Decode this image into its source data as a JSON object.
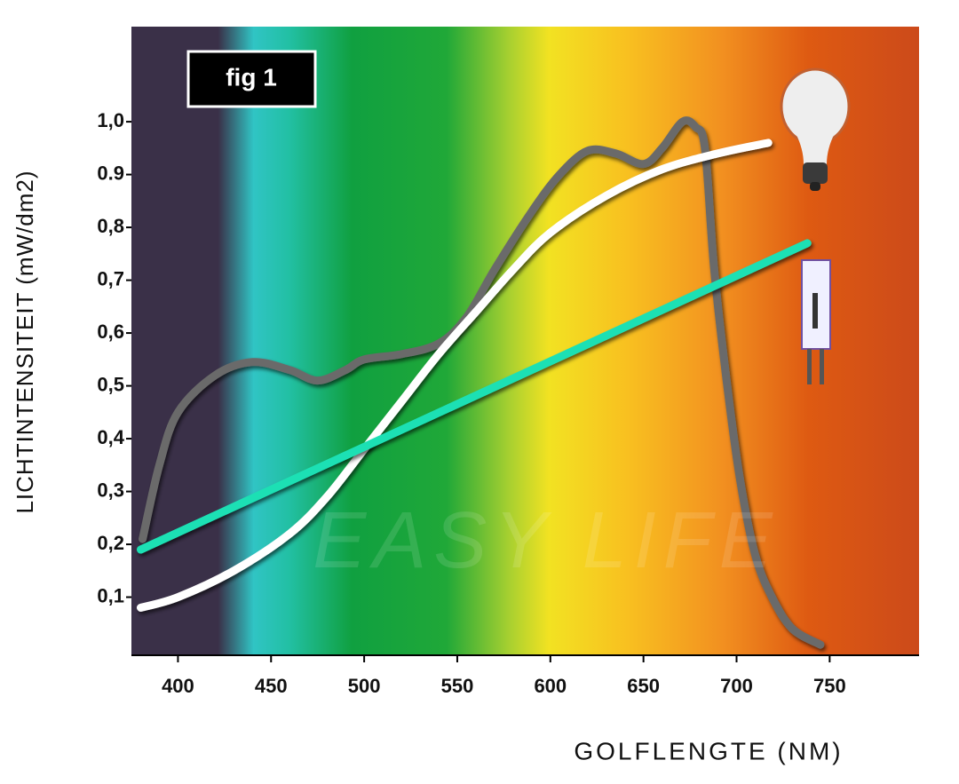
{
  "chart_data": {
    "type": "line",
    "badge": "fig 1",
    "x_label": "GOLFLENGTE (NM)",
    "y_label": "LICHTINTENSITEIT (mW/dm2)",
    "watermark": "EASY LIFE",
    "xlim": [
      375,
      798
    ],
    "ylim": [
      -0.01,
      1.18
    ],
    "xticks": [
      400,
      450,
      500,
      550,
      600,
      650,
      700,
      750
    ],
    "yticks": [
      {
        "value": 0.1,
        "label": "0,1"
      },
      {
        "value": 0.2,
        "label": "0,2"
      },
      {
        "value": 0.3,
        "label": "0,3"
      },
      {
        "value": 0.4,
        "label": "0,4"
      },
      {
        "value": 0.5,
        "label": "0,5"
      },
      {
        "value": 0.6,
        "label": "0,6"
      },
      {
        "value": 0.7,
        "label": "0,7"
      },
      {
        "value": 0.8,
        "label": "0,8"
      },
      {
        "value": 0.9,
        "label": "0.9"
      },
      {
        "value": 1.0,
        "label": "1,0"
      }
    ],
    "series": [
      {
        "color": "#6b6b6b",
        "x": [
          381,
          390,
          400,
          420,
          440,
          460,
          475,
          490,
          500,
          520,
          540,
          555,
          570,
          590,
          605,
          620,
          635,
          650,
          660,
          671,
          678,
          683,
          688,
          695,
          702,
          710,
          719,
          730,
          745
        ],
        "values": [
          0.21,
          0.35,
          0.45,
          0.52,
          0.545,
          0.53,
          0.51,
          0.53,
          0.55,
          0.56,
          0.58,
          0.63,
          0.72,
          0.83,
          0.9,
          0.945,
          0.94,
          0.92,
          0.95,
          1.0,
          0.99,
          0.95,
          0.72,
          0.5,
          0.32,
          0.18,
          0.1,
          0.04,
          0.01
        ]
      },
      {
        "color": "#ffffff",
        "x": [
          380,
          400,
          430,
          460,
          480,
          500,
          520,
          540,
          560,
          580,
          600,
          630,
          660,
          690,
          717
        ],
        "values": [
          0.08,
          0.1,
          0.15,
          0.22,
          0.29,
          0.38,
          0.47,
          0.56,
          0.64,
          0.72,
          0.79,
          0.86,
          0.91,
          0.94,
          0.96
        ]
      },
      {
        "color": "#1ee0b4",
        "x": [
          380,
          738
        ],
        "values": [
          0.19,
          0.77
        ]
      }
    ]
  }
}
